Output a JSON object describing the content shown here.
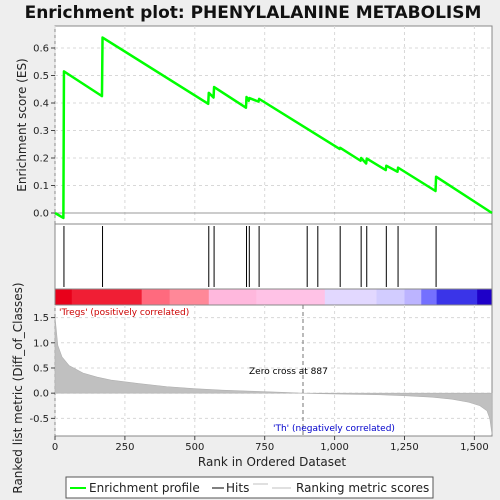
{
  "chart_data": {
    "type": "line",
    "title": "Enrichment plot: PHENYLALANINE METABOLISM",
    "xlabel": "Rank in Ordered Dataset",
    "xlim": [
      0,
      1563
    ],
    "x_ticks": [
      "0",
      "250",
      "500",
      "750",
      "1,000",
      "1,250",
      "1,500"
    ],
    "es_panel": {
      "ylabel": "Enrichment score (ES)",
      "ylim": [
        -0.04,
        0.68
      ],
      "y_ticks": [
        "0.0",
        "0.1",
        "0.2",
        "0.3",
        "0.4",
        "0.5",
        "0.6"
      ],
      "line_color": "#00ff00",
      "series": [
        {
          "name": "Enrichment profile",
          "x": [
            0,
            30,
            32,
            168,
            170,
            548,
            550,
            567,
            569,
            683,
            685,
            693,
            695,
            728,
            730,
            1018,
            1020,
            1093,
            1095,
            1113,
            1115,
            1183,
            1185,
            1225,
            1227,
            1361,
            1363,
            1563
          ],
          "y": [
            0.0,
            -0.018,
            0.515,
            0.425,
            0.638,
            0.397,
            0.437,
            0.42,
            0.458,
            0.383,
            0.422,
            0.408,
            0.418,
            0.405,
            0.415,
            0.233,
            0.237,
            0.19,
            0.2,
            0.18,
            0.198,
            0.156,
            0.172,
            0.15,
            0.165,
            0.08,
            0.132,
            0.0
          ]
        }
      ]
    },
    "hits": {
      "name": "Hits",
      "x": [
        32,
        170,
        550,
        569,
        685,
        695,
        730,
        902,
        940,
        1020,
        1095,
        1115,
        1185,
        1227,
        1363
      ]
    },
    "rank_metric": {
      "name": "Ranking metric scores",
      "ylabel": "Ranked list metric (Diff_of_Classes)",
      "ylim": [
        -0.85,
        1.75
      ],
      "y_ticks": [
        "1.5",
        "1.0",
        "0.5",
        "0.0",
        "-0.5"
      ],
      "profile_x": [
        0,
        10,
        25,
        50,
        100,
        150,
        200,
        300,
        400,
        500,
        600,
        700,
        800,
        887,
        950,
        1050,
        1150,
        1250,
        1350,
        1420,
        1480,
        1520,
        1545,
        1555,
        1563
      ],
      "profile_y": [
        1.52,
        0.95,
        0.72,
        0.55,
        0.4,
        0.32,
        0.26,
        0.19,
        0.13,
        0.09,
        0.06,
        0.04,
        0.02,
        0.0,
        -0.01,
        -0.02,
        -0.03,
        -0.05,
        -0.08,
        -0.12,
        -0.18,
        -0.25,
        -0.35,
        -0.5,
        -0.82
      ],
      "zero_cross_label": "Zero cross at 887",
      "zero_cross_x": 887,
      "pos_label": "'Tregs' (positively correlated)",
      "neg_label": "'Th' (negatively correlated)",
      "pos_color": "#cc0000",
      "neg_color": "#0000cc"
    },
    "colorbar": {
      "x_breaks": [
        0,
        60,
        310,
        410,
        550,
        720,
        965,
        1150,
        1250,
        1310,
        1365,
        1510,
        1563
      ],
      "colors": [
        "#e8001a",
        "#f01e34",
        "#ff6a7e",
        "#ff8898",
        "#ffb8dd",
        "#ffc2e6",
        "#e2d8ff",
        "#d2ccff",
        "#bcb4ff",
        "#7470ff",
        "#3a34e8",
        "#1e00c8"
      ]
    },
    "legend": {
      "items": [
        {
          "label": "Enrichment profile",
          "color": "#00ff00"
        },
        {
          "label": "Hits",
          "color": "#000000"
        },
        {
          "label": "Ranking metric scores",
          "color": "#c0c0c0"
        }
      ]
    }
  }
}
